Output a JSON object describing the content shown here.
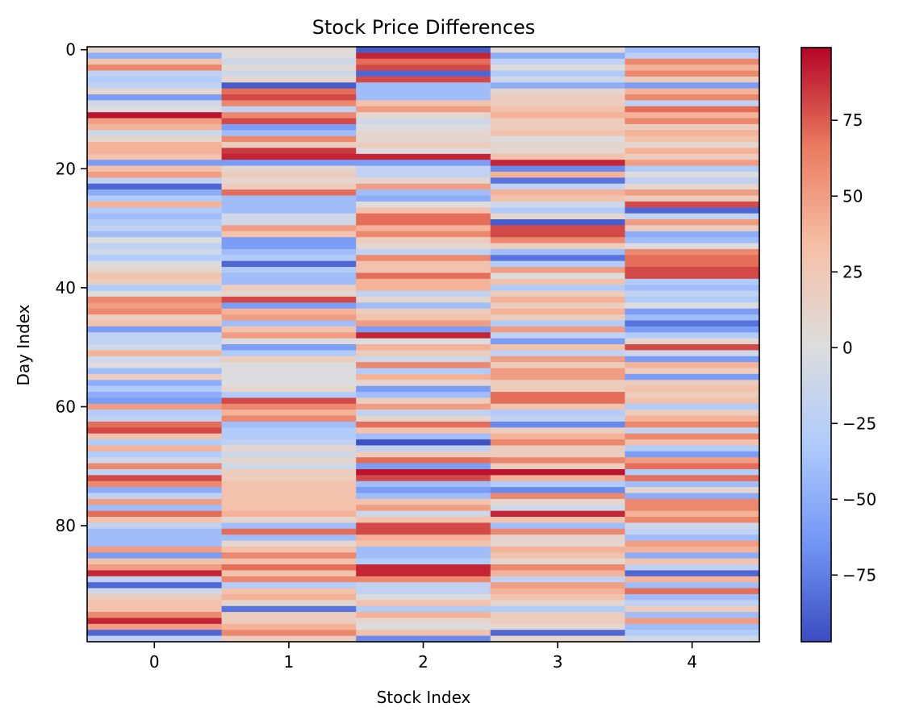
{
  "chart_data": {
    "type": "heatmap",
    "title": "Stock Price Differences",
    "xlabel": "Stock Index",
    "ylabel": "Day Index",
    "colormap": "coolwarm",
    "colormap_colors": [
      "#3b4cc0",
      "#7396f5",
      "#b0cbfc",
      "#dddddd",
      "#f6bfa6",
      "#ea7b60",
      "#b40426"
    ],
    "x_categories": [
      0,
      1,
      2,
      3,
      4
    ],
    "x_tick_labels": [
      "0",
      "1",
      "2",
      "3",
      "4"
    ],
    "y_ticks": [
      0,
      20,
      40,
      60,
      80
    ],
    "y_tick_labels": [
      "0",
      "20",
      "40",
      "60",
      "80"
    ],
    "y_range": [
      0,
      99
    ],
    "colorbar_range": [
      -97,
      99
    ],
    "colorbar_ticks": [
      -75,
      -50,
      -25,
      0,
      25,
      50,
      75
    ],
    "colorbar_tick_labels": [
      "−75",
      "−50",
      "−25",
      "0",
      "25",
      "50",
      "75"
    ],
    "grid": false,
    "values": [
      [
        10,
        5,
        -90,
        5,
        -40
      ],
      [
        -50,
        0,
        90,
        -50,
        -25
      ],
      [
        30,
        -10,
        70,
        -20,
        60
      ],
      [
        60,
        5,
        80,
        0,
        40
      ],
      [
        -20,
        -10,
        -85,
        -30,
        60
      ],
      [
        -30,
        10,
        80,
        -10,
        20
      ],
      [
        -20,
        -90,
        -40,
        -50,
        -60
      ],
      [
        10,
        70,
        -40,
        10,
        40
      ],
      [
        -60,
        80,
        -40,
        20,
        60
      ],
      [
        -10,
        60,
        30,
        20,
        -20
      ],
      [
        0,
        -20,
        50,
        30,
        70
      ],
      [
        95,
        60,
        10,
        40,
        40
      ],
      [
        50,
        80,
        -10,
        20,
        60
      ],
      [
        40,
        -60,
        0,
        20,
        20
      ],
      [
        -10,
        -40,
        10,
        30,
        40
      ],
      [
        10,
        60,
        10,
        0,
        30
      ],
      [
        40,
        20,
        20,
        10,
        10
      ],
      [
        40,
        85,
        0,
        10,
        40
      ],
      [
        30,
        90,
        90,
        30,
        20
      ],
      [
        -60,
        -60,
        -60,
        90,
        50
      ],
      [
        30,
        10,
        -20,
        -70,
        -30
      ],
      [
        50,
        20,
        -20,
        40,
        0
      ],
      [
        -20,
        10,
        10,
        -80,
        -20
      ],
      [
        -85,
        20,
        50,
        -20,
        10
      ],
      [
        -50,
        70,
        -40,
        40,
        50
      ],
      [
        -30,
        -40,
        -50,
        30,
        20
      ],
      [
        40,
        -40,
        0,
        -10,
        80
      ],
      [
        -30,
        -40,
        30,
        -30,
        -85
      ],
      [
        -40,
        -10,
        70,
        10,
        -20
      ],
      [
        -30,
        -10,
        70,
        -90,
        50
      ],
      [
        -20,
        50,
        40,
        80,
        20
      ],
      [
        -40,
        30,
        60,
        80,
        -50
      ],
      [
        0,
        -60,
        20,
        60,
        -40
      ],
      [
        -20,
        -60,
        10,
        20,
        0
      ],
      [
        -10,
        -40,
        -20,
        -40,
        60
      ],
      [
        -30,
        -30,
        60,
        -80,
        70
      ],
      [
        0,
        -85,
        30,
        -30,
        70
      ],
      [
        10,
        -30,
        30,
        50,
        80
      ],
      [
        30,
        -40,
        70,
        0,
        80
      ],
      [
        20,
        -40,
        40,
        30,
        -30
      ],
      [
        -30,
        20,
        40,
        -30,
        -40
      ],
      [
        0,
        10,
        -20,
        20,
        -20
      ],
      [
        60,
        80,
        10,
        40,
        -30
      ],
      [
        50,
        -60,
        -40,
        20,
        0
      ],
      [
        60,
        40,
        20,
        40,
        -60
      ],
      [
        20,
        50,
        30,
        20,
        -40
      ],
      [
        30,
        -40,
        50,
        -30,
        -80
      ],
      [
        -60,
        30,
        -60,
        50,
        -60
      ],
      [
        -20,
        50,
        90,
        -20,
        -30
      ],
      [
        -20,
        0,
        0,
        -60,
        10
      ],
      [
        -10,
        -60,
        40,
        30,
        80
      ],
      [
        40,
        -30,
        20,
        -20,
        -10
      ],
      [
        -10,
        20,
        -10,
        50,
        -60
      ],
      [
        0,
        0,
        60,
        20,
        40
      ],
      [
        -40,
        0,
        -30,
        50,
        20
      ],
      [
        20,
        0,
        40,
        50,
        -60
      ],
      [
        -50,
        0,
        10,
        20,
        20
      ],
      [
        -30,
        10,
        -60,
        20,
        30
      ],
      [
        -50,
        -30,
        -40,
        70,
        20
      ],
      [
        -60,
        80,
        20,
        70,
        30
      ],
      [
        50,
        60,
        50,
        30,
        -30
      ],
      [
        -30,
        40,
        -20,
        -30,
        20
      ],
      [
        -20,
        60,
        10,
        -20,
        40
      ],
      [
        70,
        -40,
        70,
        -70,
        60
      ],
      [
        80,
        -30,
        30,
        20,
        -20
      ],
      [
        30,
        -30,
        -40,
        40,
        60
      ],
      [
        -30,
        -20,
        -95,
        60,
        30
      ],
      [
        40,
        10,
        -20,
        20,
        -30
      ],
      [
        -30,
        -10,
        20,
        20,
        -60
      ],
      [
        -10,
        10,
        70,
        60,
        50
      ],
      [
        60,
        -10,
        -60,
        20,
        70
      ],
      [
        -20,
        20,
        95,
        95,
        -30
      ],
      [
        80,
        20,
        80,
        40,
        70
      ],
      [
        60,
        30,
        -40,
        -30,
        -40
      ],
      [
        -50,
        30,
        -60,
        -70,
        10
      ],
      [
        -20,
        30,
        -40,
        60,
        -50
      ],
      [
        50,
        30,
        30,
        10,
        60
      ],
      [
        -40,
        30,
        50,
        -10,
        60
      ],
      [
        70,
        40,
        -10,
        90,
        40
      ],
      [
        30,
        10,
        30,
        30,
        60
      ],
      [
        -20,
        -40,
        80,
        -40,
        -10
      ],
      [
        -40,
        70,
        80,
        60,
        -20
      ],
      [
        -40,
        -40,
        40,
        10,
        -40
      ],
      [
        -40,
        10,
        30,
        10,
        50
      ],
      [
        50,
        30,
        -40,
        40,
        40
      ],
      [
        -60,
        60,
        -40,
        30,
        -50
      ],
      [
        30,
        30,
        -30,
        10,
        30
      ],
      [
        50,
        70,
        90,
        60,
        -20
      ],
      [
        90,
        30,
        90,
        40,
        -85
      ],
      [
        -20,
        60,
        60,
        -20,
        40
      ],
      [
        -85,
        -30,
        -20,
        50,
        -40
      ],
      [
        -10,
        30,
        -20,
        40,
        70
      ],
      [
        20,
        40,
        0,
        30,
        -40
      ],
      [
        30,
        10,
        30,
        10,
        -20
      ],
      [
        30,
        -80,
        -30,
        -30,
        20
      ],
      [
        60,
        20,
        40,
        20,
        -40
      ],
      [
        90,
        20,
        10,
        20,
        50
      ],
      [
        50,
        40,
        0,
        10,
        -40
      ],
      [
        -85,
        60,
        30,
        -85,
        -30
      ],
      [
        -20,
        20,
        -70,
        10,
        -10
      ]
    ]
  }
}
